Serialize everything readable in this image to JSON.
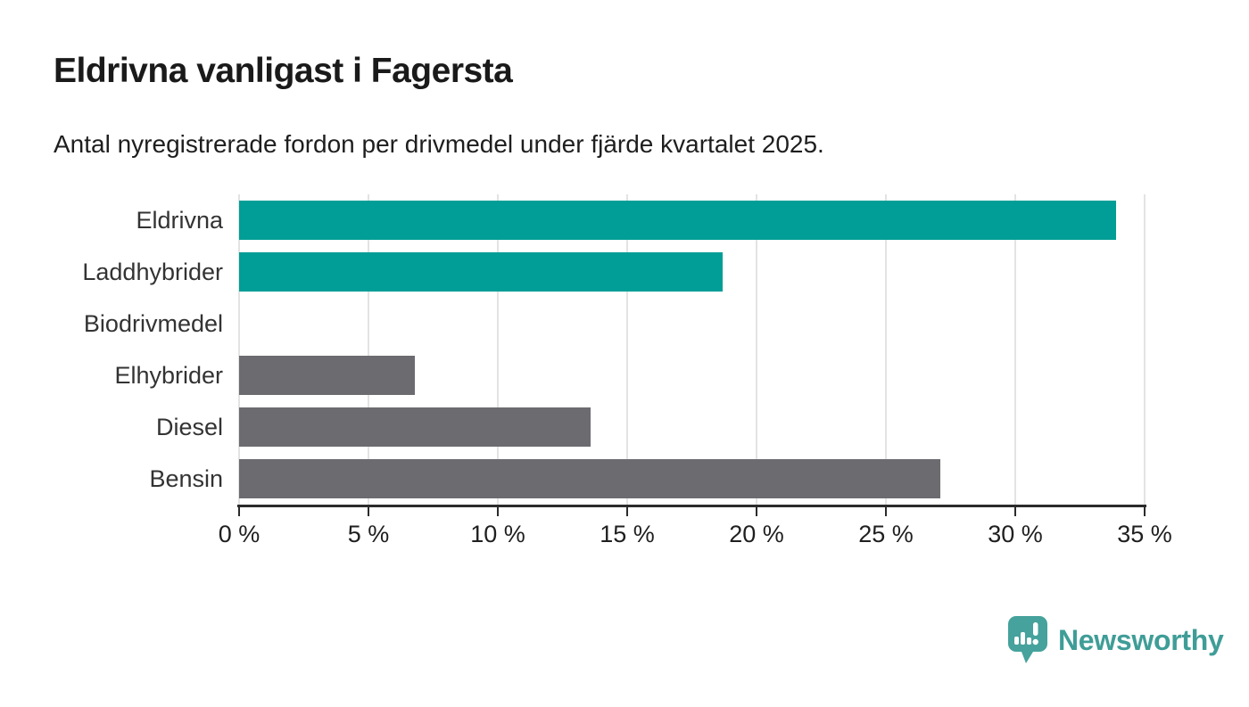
{
  "header": {
    "title": "Eldrivna vanligast i Fagersta",
    "subtitle": "Antal nyregistrerade fordon per drivmedel under fjärde kvartalet 2025."
  },
  "chart_data": {
    "type": "bar",
    "orientation": "horizontal",
    "title": "Eldrivna vanligast i Fagersta",
    "subtitle": "Antal nyregistrerade fordon per drivmedel under fjärde kvartalet 2025.",
    "categories": [
      "Eldrivna",
      "Laddhybrider",
      "Biodrivmedel",
      "Elhybrider",
      "Diesel",
      "Bensin"
    ],
    "values": [
      33.9,
      18.7,
      0,
      6.8,
      13.6,
      27.1
    ],
    "unit": "%",
    "xlabel": "",
    "ylabel": "",
    "xlim": [
      0,
      35
    ],
    "x_ticks": [
      0,
      5,
      10,
      15,
      20,
      25,
      30,
      35
    ],
    "x_tick_labels": [
      "0 %",
      "5 %",
      "10 %",
      "15 %",
      "20 %",
      "25 %",
      "30 %",
      "35 %"
    ],
    "grid": true,
    "legend_position": "none",
    "bar_colors": [
      "#009e96",
      "#009e96",
      "#6c6b70",
      "#6c6b70",
      "#6c6b70",
      "#6c6b70"
    ]
  },
  "colors": {
    "background": "#ffffff",
    "highlight_teal": "#009e96",
    "neutral_gray": "#6c6b70",
    "gridline": "#e3e3e3",
    "axis_line": "#2b2b2b",
    "title_text": "#1a1a1a",
    "category_text": "#333333",
    "tick_text": "#1f1f1f",
    "brand_teal": "#3f9d97",
    "logo_pin_teal": "#45a29c"
  },
  "footer": {
    "brand": "Newsworthy",
    "logo_icon": "newsworthy-pin-chart-icon"
  }
}
